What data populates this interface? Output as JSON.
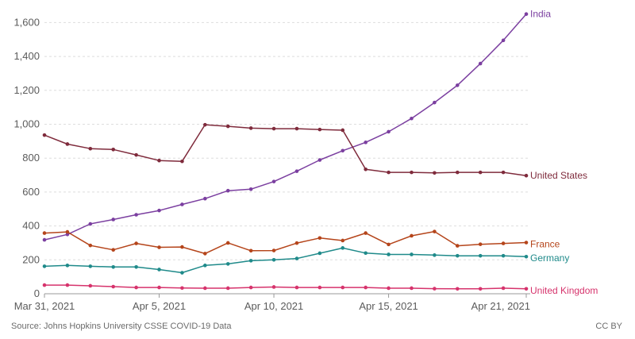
{
  "chart_data": {
    "type": "line",
    "x": [
      "Mar 31, 2021",
      "Apr 1, 2021",
      "Apr 2, 2021",
      "Apr 3, 2021",
      "Apr 4, 2021",
      "Apr 5, 2021",
      "Apr 6, 2021",
      "Apr 7, 2021",
      "Apr 8, 2021",
      "Apr 9, 2021",
      "Apr 10, 2021",
      "Apr 11, 2021",
      "Apr 12, 2021",
      "Apr 13, 2021",
      "Apr 14, 2021",
      "Apr 15, 2021",
      "Apr 16, 2021",
      "Apr 17, 2021",
      "Apr 18, 2021",
      "Apr 19, 2021",
      "Apr 20, 2021",
      "Apr 21, 2021"
    ],
    "x_tick_labels": [
      "Mar 31, 2021",
      "Apr 5, 2021",
      "Apr 10, 2021",
      "Apr 15, 2021",
      "Apr 21, 2021"
    ],
    "x_tick_index": [
      0,
      5,
      10,
      15,
      21
    ],
    "y_ticks": [
      0,
      200,
      400,
      600,
      800,
      1000,
      1200,
      1400,
      1600
    ],
    "y_tick_labels": [
      "0",
      "200",
      "400",
      "600",
      "800",
      "1,000",
      "1,200",
      "1,400",
      "1,600"
    ],
    "ylim": [
      0,
      1700
    ],
    "grid": true,
    "series": [
      {
        "name": "India",
        "color": "#7b3fa0",
        "values": [
          318,
          350,
          412,
          438,
          466,
          491,
          527,
          561,
          608,
          617,
          662,
          723,
          789,
          844,
          893,
          956,
          1034,
          1128,
          1230,
          1358,
          1495,
          1650
        ]
      },
      {
        "name": "United States",
        "color": "#7f2b3c",
        "values": [
          936,
          883,
          856,
          851,
          819,
          786,
          781,
          997,
          988,
          977,
          974,
          974,
          969,
          965,
          734,
          716,
          716,
          713,
          716,
          716,
          716,
          697
        ]
      },
      {
        "name": "France",
        "color": "#b5451b",
        "values": [
          358,
          365,
          285,
          259,
          297,
          274,
          276,
          237,
          300,
          254,
          255,
          299,
          329,
          314,
          358,
          291,
          342,
          367,
          283,
          292,
          297,
          302
        ]
      },
      {
        "name": "Germany",
        "color": "#1f8a8a",
        "values": [
          162,
          167,
          162,
          158,
          158,
          143,
          124,
          167,
          176,
          195,
          200,
          208,
          239,
          270,
          240,
          232,
          232,
          228,
          224,
          224,
          224,
          219
        ]
      },
      {
        "name": "United Kingdom",
        "color": "#d6336c",
        "values": [
          51,
          51,
          47,
          42,
          37,
          37,
          34,
          33,
          33,
          37,
          40,
          37,
          37,
          37,
          37,
          33,
          33,
          30,
          29,
          29,
          33,
          29
        ]
      }
    ]
  },
  "footer": {
    "source": "Source: Johns Hopkins University CSSE COVID-19 Data",
    "license": "CC BY"
  }
}
